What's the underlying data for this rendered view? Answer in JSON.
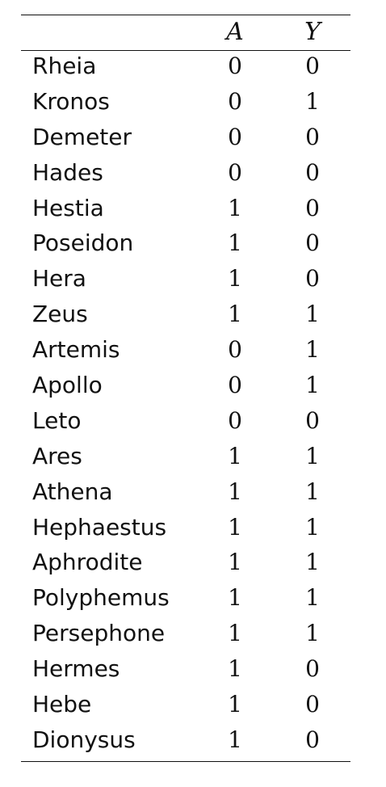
{
  "table": {
    "headers": [
      "",
      "A",
      "Y"
    ],
    "rows": [
      {
        "name": "Rheia",
        "a": "0",
        "y": "0"
      },
      {
        "name": "Kronos",
        "a": "0",
        "y": "1"
      },
      {
        "name": "Demeter",
        "a": "0",
        "y": "0"
      },
      {
        "name": "Hades",
        "a": "0",
        "y": "0"
      },
      {
        "name": "Hestia",
        "a": "1",
        "y": "0"
      },
      {
        "name": "Poseidon",
        "a": "1",
        "y": "0"
      },
      {
        "name": "Hera",
        "a": "1",
        "y": "0"
      },
      {
        "name": "Zeus",
        "a": "1",
        "y": "1"
      },
      {
        "name": "Artemis",
        "a": "0",
        "y": "1"
      },
      {
        "name": "Apollo",
        "a": "0",
        "y": "1"
      },
      {
        "name": "Leto",
        "a": "0",
        "y": "0"
      },
      {
        "name": "Ares",
        "a": "1",
        "y": "1"
      },
      {
        "name": "Athena",
        "a": "1",
        "y": "1"
      },
      {
        "name": "Hephaestus",
        "a": "1",
        "y": "1"
      },
      {
        "name": "Aphrodite",
        "a": "1",
        "y": "1"
      },
      {
        "name": "Polyphemus",
        "a": "1",
        "y": "1"
      },
      {
        "name": "Persephone",
        "a": "1",
        "y": "1"
      },
      {
        "name": "Hermes",
        "a": "1",
        "y": "0"
      },
      {
        "name": "Hebe",
        "a": "1",
        "y": "0"
      },
      {
        "name": "Dionysus",
        "a": "1",
        "y": "0"
      }
    ]
  }
}
